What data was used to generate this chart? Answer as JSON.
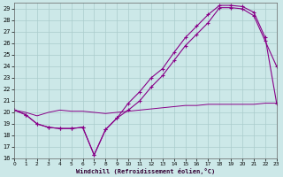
{
  "xlabel": "Windchill (Refroidissement éolien,°C)",
  "background_color": "#cce8e8",
  "grid_color": "#aacccc",
  "line_color": "#880088",
  "xlim": [
    0,
    23
  ],
  "ylim": [
    16,
    29.5
  ],
  "xticks": [
    0,
    1,
    2,
    3,
    4,
    5,
    6,
    7,
    8,
    9,
    10,
    11,
    12,
    13,
    14,
    15,
    16,
    17,
    18,
    19,
    20,
    21,
    22,
    23
  ],
  "yticks": [
    16,
    17,
    18,
    19,
    20,
    21,
    22,
    23,
    24,
    25,
    26,
    27,
    28,
    29
  ],
  "curve_upper_x": [
    0,
    1,
    2,
    3,
    4,
    5,
    6,
    7,
    8,
    9,
    10,
    11,
    12,
    13,
    14,
    15,
    16,
    17,
    18,
    19,
    20,
    21,
    22,
    23
  ],
  "curve_upper_y": [
    20.2,
    19.8,
    19.0,
    18.7,
    18.6,
    18.6,
    18.7,
    16.3,
    18.5,
    19.5,
    20.8,
    21.8,
    23.0,
    23.8,
    25.2,
    26.5,
    27.5,
    28.5,
    29.3,
    29.3,
    29.2,
    28.7,
    26.5,
    20.8
  ],
  "curve_lower_x": [
    0,
    1,
    2,
    3,
    4,
    5,
    6,
    7,
    8,
    9,
    10,
    11,
    12,
    13,
    14,
    15,
    16,
    17,
    18,
    19,
    20,
    21,
    22,
    23
  ],
  "curve_lower_y": [
    20.2,
    19.8,
    19.0,
    18.7,
    18.6,
    18.6,
    18.7,
    16.3,
    18.5,
    19.5,
    20.2,
    21.0,
    22.2,
    23.2,
    24.5,
    25.8,
    26.8,
    27.8,
    29.1,
    29.1,
    29.0,
    28.4,
    26.2,
    24.0
  ],
  "flat_x": [
    0,
    1,
    2,
    3,
    4,
    5,
    6,
    7,
    8,
    9,
    10,
    11,
    12,
    13,
    14,
    15,
    16,
    17,
    18,
    19,
    20,
    21,
    22,
    23
  ],
  "flat_y": [
    20.2,
    20.0,
    19.7,
    20.0,
    20.2,
    20.1,
    20.1,
    20.0,
    19.9,
    20.0,
    20.1,
    20.2,
    20.3,
    20.4,
    20.5,
    20.6,
    20.6,
    20.7,
    20.7,
    20.7,
    20.7,
    20.7,
    20.8,
    20.8
  ]
}
